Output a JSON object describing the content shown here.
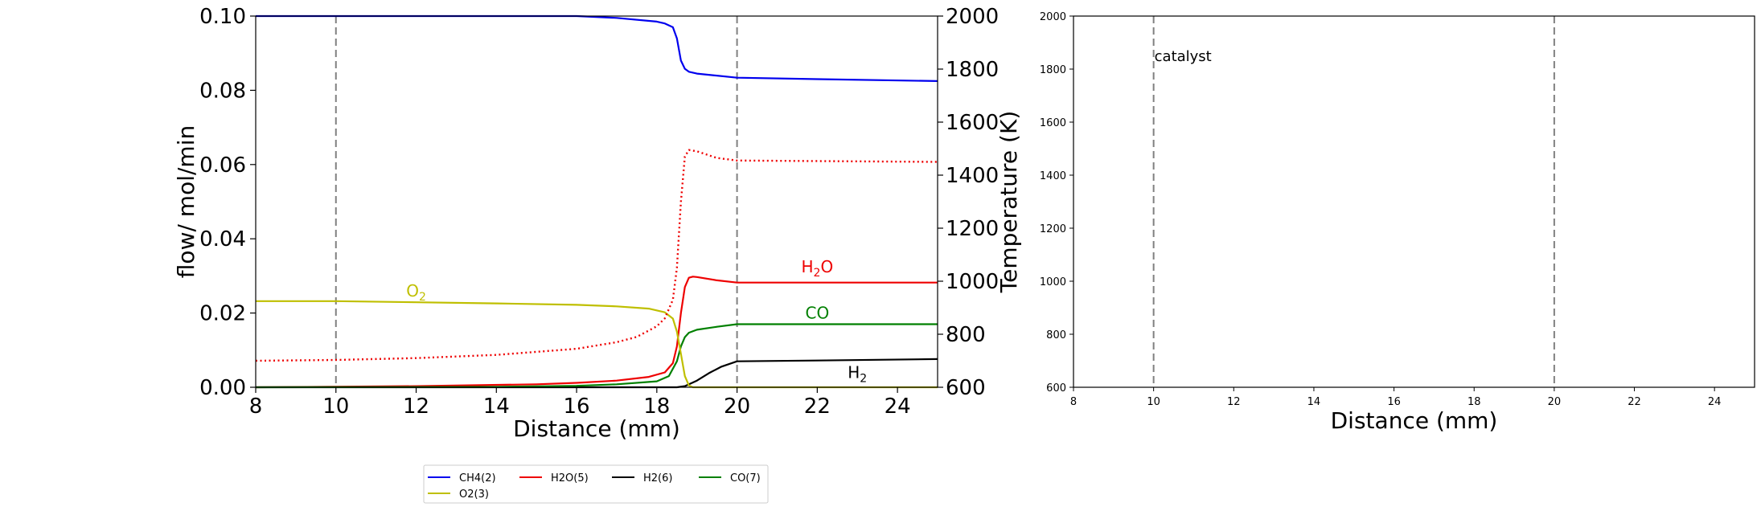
{
  "chart_data": [
    {
      "type": "line",
      "xlabel": "Distance (mm)",
      "ylabel": "flow/ mol/min",
      "y2label": "Temperature (K)",
      "xlim": [
        8,
        25
      ],
      "ylim": [
        0,
        0.1
      ],
      "y2lim": [
        600,
        2000
      ],
      "xticks": [
        "8",
        "10",
        "12",
        "14",
        "16",
        "18",
        "20",
        "22",
        "24"
      ],
      "yticks": [
        "0.00",
        "0.02",
        "0.04",
        "0.06",
        "0.08",
        "0.10"
      ],
      "y2ticks": [
        "600",
        "800",
        "1000",
        "1200",
        "1400",
        "1600",
        "1800",
        "2000"
      ],
      "grid": false,
      "vlines": [
        10,
        20
      ],
      "series": [
        {
          "name": "CH4(2)",
          "color": "#0000ee",
          "x": [
            8,
            14,
            16,
            17,
            18,
            18.2,
            18.4,
            18.5,
            18.6,
            18.7,
            18.8,
            19,
            20,
            22,
            25
          ],
          "values": [
            0.1,
            0.1,
            0.1,
            0.0995,
            0.0985,
            0.098,
            0.097,
            0.094,
            0.088,
            0.0858,
            0.085,
            0.0845,
            0.0834,
            0.083,
            0.0825
          ]
        },
        {
          "name": "H2O(5)",
          "color": "#ee0000",
          "x": [
            8,
            12,
            15,
            16,
            17,
            17.8,
            18.2,
            18.4,
            18.5,
            18.6,
            18.7,
            18.8,
            18.9,
            19,
            19.5,
            20,
            25
          ],
          "values": [
            0,
            0.0003,
            0.0008,
            0.0012,
            0.0018,
            0.0028,
            0.004,
            0.0065,
            0.011,
            0.02,
            0.027,
            0.0295,
            0.0298,
            0.0297,
            0.0288,
            0.0282,
            0.0282
          ]
        },
        {
          "name": "H2(6)",
          "color": "#000000",
          "x": [
            8,
            18.5,
            18.7,
            19,
            19.3,
            19.6,
            20,
            22,
            25
          ],
          "values": [
            0,
            0,
            0.0003,
            0.0018,
            0.0038,
            0.0055,
            0.007,
            0.0072,
            0.0076
          ]
        },
        {
          "name": "CO(7)",
          "color": "#008000",
          "x": [
            8,
            14,
            16,
            17,
            18,
            18.3,
            18.5,
            18.6,
            18.7,
            18.8,
            19,
            19.5,
            20,
            25
          ],
          "values": [
            0,
            0.0001,
            0.0004,
            0.0008,
            0.0016,
            0.003,
            0.007,
            0.011,
            0.0135,
            0.0147,
            0.0155,
            0.0163,
            0.017,
            0.017
          ]
        },
        {
          "name": "O2(3)",
          "color": "#bfbf00",
          "x": [
            8,
            10,
            12,
            14,
            16,
            17,
            17.8,
            18.2,
            18.4,
            18.5,
            18.6,
            18.7,
            18.8,
            18.9,
            25
          ],
          "values": [
            0.0232,
            0.0232,
            0.0229,
            0.0226,
            0.0222,
            0.0218,
            0.0212,
            0.0202,
            0.0185,
            0.015,
            0.009,
            0.003,
            0.0005,
            0,
            0
          ]
        },
        {
          "name": "Temperature",
          "axis": "right",
          "color": "#ee0000",
          "dash": "dotted",
          "x": [
            8,
            10,
            12,
            14,
            16,
            17,
            17.5,
            18,
            18.2,
            18.4,
            18.5,
            18.6,
            18.7,
            18.8,
            19,
            19.5,
            20,
            25
          ],
          "values": [
            700,
            703,
            710,
            722,
            745,
            770,
            790,
            830,
            860,
            930,
            1050,
            1300,
            1470,
            1495,
            1490,
            1465,
            1455,
            1450
          ]
        }
      ],
      "annotations": [
        {
          "base": "O",
          "sub": "2",
          "x": 12,
          "y": 0.0245,
          "color": "#bfbf00"
        },
        {
          "base": "H",
          "sub": "2",
          "after": "O",
          "x": 22,
          "y": 0.031,
          "color": "#ee0000"
        },
        {
          "base": "CO",
          "x": 22,
          "y": 0.0185,
          "color": "#008000"
        },
        {
          "base": "H",
          "sub": "2",
          "x": 23,
          "y": 0.0025,
          "color": "#000000"
        }
      ],
      "legend": {
        "placement": "lower-center",
        "entries": [
          {
            "label": "CH4(2)",
            "color": "#0000ee"
          },
          {
            "label": "H2O(5)",
            "color": "#ee0000"
          },
          {
            "label": "H2(6)",
            "color": "#000000"
          },
          {
            "label": "CO(7)",
            "color": "#008000"
          },
          {
            "label": "O2(3)",
            "color": "#bfbf00"
          }
        ]
      }
    },
    {
      "type": "line",
      "xlabel": "Distance (mm)",
      "xlim": [
        8,
        25
      ],
      "ylim": [
        600,
        2000
      ],
      "xticks": [
        "8",
        "10",
        "12",
        "14",
        "16",
        "18",
        "20",
        "22",
        "24"
      ],
      "yticks": [
        "600",
        "800",
        "1000",
        "1200",
        "1400",
        "1600",
        "1800",
        "2000"
      ],
      "grid": false,
      "vlines": [
        10,
        20
      ],
      "series": [],
      "annotations": [
        {
          "base": "catalyst",
          "x": 10,
          "y": 1830,
          "color": "#000000"
        }
      ]
    }
  ]
}
